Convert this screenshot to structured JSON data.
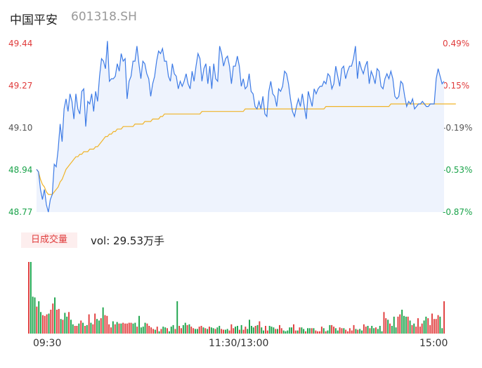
{
  "header": {
    "name": "中国平安",
    "code": "601318.SH"
  },
  "volume": {
    "tab_label": "日成交量",
    "vol_text": "vol: 29.53万手"
  },
  "chart_data": {
    "type": "line",
    "y_left_ticks": [
      "49.44",
      "49.27",
      "49.10",
      "48.94",
      "48.77"
    ],
    "y_right_ticks": [
      "0.49%",
      "0.15%",
      "-0.19%",
      "-0.53%",
      "-0.87%"
    ],
    "ylim": [
      48.77,
      49.44
    ],
    "x_ticks": [
      "09:30",
      "11:30/13:00",
      "15:00"
    ],
    "colors": {
      "up": "#e03c3c",
      "down": "#1aa34a",
      "price": "#3d7be6",
      "avg": "#f0b429",
      "neutral": "#555555"
    },
    "series": [
      {
        "values": [
          48.94,
          48.93,
          48.86,
          48.82,
          48.86,
          48.8,
          48.77,
          48.82,
          48.84,
          48.96,
          48.95,
          49.02,
          49.12,
          49.05,
          49.18,
          49.22,
          49.17,
          49.24,
          49.21,
          49.14,
          49.24,
          49.18,
          49.16,
          49.25,
          49.26,
          49.11,
          49.21,
          49.2,
          49.24,
          49.17,
          49.25,
          49.21,
          49.31,
          49.38,
          49.37,
          49.34,
          49.45,
          49.29,
          49.3,
          49.3,
          49.31,
          49.36,
          49.33,
          49.4,
          49.37,
          49.38,
          49.22,
          49.29,
          49.31,
          49.37,
          49.37,
          49.43,
          49.36,
          49.3,
          49.37,
          49.36,
          49.32,
          49.3,
          49.23,
          49.28,
          49.31,
          49.37,
          49.41,
          49.4,
          49.42,
          49.37,
          49.37,
          49.31,
          49.29,
          49.36,
          49.32,
          49.31,
          49.26,
          49.29,
          49.27,
          49.29,
          49.32,
          49.28,
          49.26,
          49.33,
          49.29,
          49.35,
          49.4,
          49.38,
          49.29,
          49.34,
          49.36,
          49.28,
          49.35,
          49.26,
          49.36,
          49.3,
          49.29,
          49.43,
          49.4,
          49.35,
          49.38,
          49.39,
          49.35,
          49.28,
          49.35,
          49.35,
          49.39,
          49.35,
          49.27,
          49.3,
          49.26,
          49.27,
          49.32,
          49.25,
          49.24,
          49.19,
          49.18,
          49.21,
          49.18,
          49.23,
          49.16,
          49.15,
          49.25,
          49.29,
          49.24,
          49.23,
          49.19,
          49.26,
          49.25,
          49.27,
          49.33,
          49.32,
          49.28,
          49.22,
          49.17,
          49.15,
          49.19,
          49.22,
          49.19,
          49.24,
          49.19,
          49.14,
          49.25,
          49.22,
          49.19,
          49.26,
          49.24,
          49.26,
          49.27,
          49.27,
          49.29,
          49.28,
          49.32,
          49.31,
          49.26,
          49.28,
          49.35,
          49.31,
          49.27,
          49.34,
          49.35,
          49.3,
          49.33,
          49.35,
          49.35,
          49.38,
          49.43,
          49.3,
          49.37,
          49.34,
          49.32,
          49.35,
          49.37,
          49.28,
          49.33,
          49.31,
          49.28,
          49.34,
          49.33,
          49.27,
          49.26,
          49.3,
          49.32,
          49.3,
          49.33,
          49.3,
          49.23,
          49.22,
          49.23,
          49.29,
          49.28,
          49.23,
          49.19,
          49.21,
          49.2,
          49.22,
          49.18,
          49.19,
          49.2,
          49.2,
          49.21,
          49.2,
          49.19,
          49.19,
          49.2,
          49.2,
          49.2,
          49.3,
          49.34,
          49.31,
          49.28,
          49.29
        ]
      },
      {
        "values": [
          48.94,
          48.93,
          48.9,
          48.88,
          48.87,
          48.85,
          48.84,
          48.84,
          48.84,
          48.85,
          48.86,
          48.87,
          48.89,
          48.9,
          48.92,
          48.94,
          48.95,
          48.96,
          48.97,
          48.98,
          48.99,
          48.99,
          49.0,
          49.0,
          49.01,
          49.01,
          49.01,
          49.02,
          49.02,
          49.02,
          49.03,
          49.03,
          49.04,
          49.05,
          49.06,
          49.07,
          49.07,
          49.08,
          49.08,
          49.09,
          49.09,
          49.1,
          49.1,
          49.1,
          49.11,
          49.11,
          49.11,
          49.11,
          49.11,
          49.11,
          49.12,
          49.12,
          49.12,
          49.12,
          49.12,
          49.13,
          49.13,
          49.13,
          49.13,
          49.14,
          49.14,
          49.14,
          49.14,
          49.15,
          49.15,
          49.16,
          49.16,
          49.16,
          49.16,
          49.16,
          49.16,
          49.16,
          49.16,
          49.16,
          49.16,
          49.16,
          49.16,
          49.16,
          49.16,
          49.16,
          49.16,
          49.16,
          49.16,
          49.16,
          49.17,
          49.17,
          49.17,
          49.17,
          49.17,
          49.17,
          49.17,
          49.17,
          49.17,
          49.17,
          49.17,
          49.17,
          49.17,
          49.17,
          49.17,
          49.17,
          49.17,
          49.17,
          49.17,
          49.17,
          49.17,
          49.17,
          49.18,
          49.18,
          49.18,
          49.18,
          49.18,
          49.18,
          49.18,
          49.18,
          49.18,
          49.18,
          49.18,
          49.18,
          49.18,
          49.18,
          49.18,
          49.18,
          49.18,
          49.18,
          49.18,
          49.18,
          49.18,
          49.18,
          49.18,
          49.18,
          49.18,
          49.18,
          49.18,
          49.18,
          49.18,
          49.18,
          49.18,
          49.18,
          49.18,
          49.18,
          49.18,
          49.18,
          49.18,
          49.18,
          49.18,
          49.18,
          49.18,
          49.19,
          49.19,
          49.19,
          49.19,
          49.19,
          49.19,
          49.19,
          49.19,
          49.19,
          49.19,
          49.19,
          49.19,
          49.19,
          49.19,
          49.19,
          49.19,
          49.19,
          49.19,
          49.19,
          49.19,
          49.19,
          49.19,
          49.19,
          49.19,
          49.19,
          49.19,
          49.19,
          49.19,
          49.19,
          49.19,
          49.19,
          49.19,
          49.19,
          49.2,
          49.2,
          49.2,
          49.2,
          49.2,
          49.2,
          49.2,
          49.2,
          49.2,
          49.2,
          49.2,
          49.2,
          49.2,
          49.2,
          49.2,
          49.2,
          49.2,
          49.2,
          49.2,
          49.2,
          49.2,
          49.2,
          49.2,
          49.2,
          49.2,
          49.2,
          49.2,
          49.2,
          49.2,
          49.2,
          49.2,
          49.2,
          49.2,
          49.2
        ]
      }
    ],
    "volume_values": [
      93,
      93,
      48,
      47,
      35,
      42,
      28,
      24,
      23,
      25,
      26,
      31,
      39,
      47,
      31,
      32,
      19,
      18,
      27,
      22,
      28,
      18,
      12,
      10,
      10,
      13,
      17,
      14,
      10,
      11,
      25,
      14,
      12,
      26,
      19,
      17,
      20,
      34,
      24,
      23,
      12,
      8,
      16,
      12,
      15,
      13,
      13,
      14,
      13,
      13,
      14,
      14,
      13,
      14,
      9,
      23,
      8,
      9,
      14,
      13,
      10,
      8,
      6,
      5,
      9,
      3,
      6,
      9,
      8,
      7,
      3,
      9,
      11,
      6,
      42,
      10,
      7,
      11,
      14,
      11,
      12,
      9,
      7,
      6,
      6,
      9,
      10,
      8,
      7,
      6,
      9,
      8,
      7,
      6,
      8,
      10,
      6,
      5,
      5,
      6,
      4,
      12,
      7,
      9,
      10,
      5,
      11,
      5,
      9,
      6,
      18,
      10,
      8,
      10,
      11,
      16,
      8,
      4,
      10,
      4,
      10,
      9,
      8,
      6,
      6,
      11,
      7,
      4,
      3,
      4,
      8,
      8,
      12,
      4,
      4,
      8,
      8,
      6,
      3,
      7,
      7,
      7,
      7,
      4,
      3,
      3,
      9,
      7,
      3,
      4,
      11,
      11,
      9,
      7,
      4,
      8,
      7,
      7,
      5,
      3,
      7,
      4,
      11,
      6,
      5,
      6,
      4,
      12,
      9,
      10,
      7,
      10,
      7,
      8,
      6,
      10,
      3,
      28,
      20,
      18,
      13,
      10,
      22,
      8,
      22,
      25,
      31,
      23,
      22,
      22,
      17,
      11,
      13,
      9,
      20,
      9,
      13,
      17,
      22,
      20,
      11,
      26,
      19,
      19,
      24,
      22,
      7,
      42
    ]
  }
}
